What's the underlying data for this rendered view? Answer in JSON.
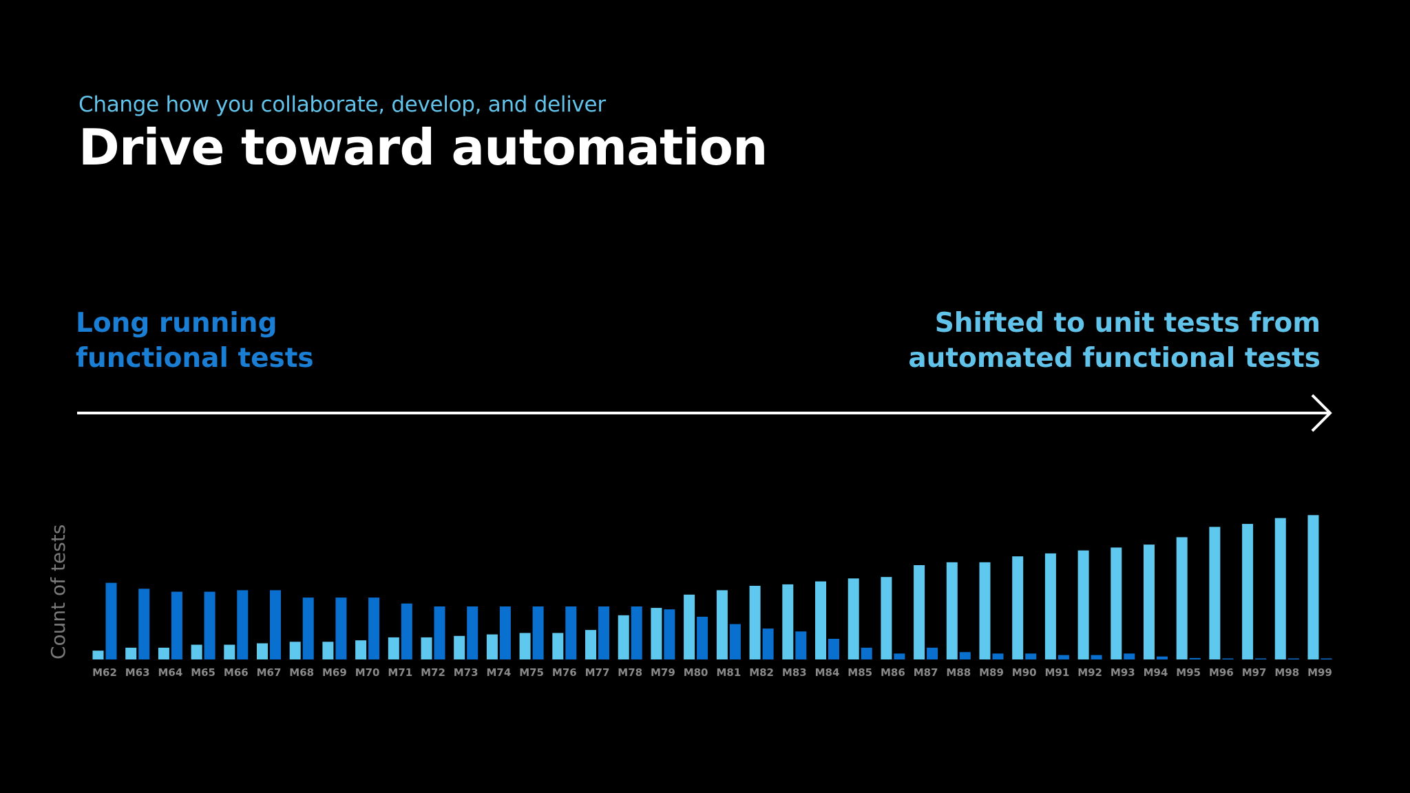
{
  "slide": {
    "kicker": "Change how you collaborate, develop, and deliver",
    "title": "Drive toward automation",
    "left_note": [
      "Long running",
      "functional tests"
    ],
    "right_note": [
      "Shifted to unit tests from",
      "automated functional tests"
    ]
  },
  "colors": {
    "background": "#000000",
    "light_series": "#5fc8ee",
    "dark_series": "#0a70d0",
    "kicker": "#62c3ea",
    "left_note": "#1a7fd4",
    "right_note": "#62c3ea",
    "axis_text": "#8a8a8a"
  },
  "chart_data": {
    "type": "bar",
    "ylabel": "Count of tests",
    "xlabel": "",
    "legend": "none",
    "grid": false,
    "categories": [
      "M62",
      "M63",
      "M64",
      "M65",
      "M66",
      "M67",
      "M68",
      "M69",
      "M70",
      "M71",
      "M72",
      "M73",
      "M74",
      "M75",
      "M76",
      "M77",
      "M78",
      "M79",
      "M80",
      "M81",
      "M82",
      "M83",
      "M84",
      "M85",
      "M86",
      "M87",
      "M88",
      "M89",
      "M90",
      "M91",
      "M92",
      "M93",
      "M94",
      "M95",
      "M96",
      "M97",
      "M98",
      "M99"
    ],
    "series": [
      {
        "values": [
          6,
          8,
          8,
          10,
          10,
          11,
          12,
          12,
          13,
          15,
          15,
          16,
          17,
          18,
          18,
          20,
          30,
          35,
          44,
          47,
          50,
          51,
          53,
          55,
          56,
          64,
          66,
          66,
          70,
          72,
          74,
          76,
          78,
          83,
          90,
          92,
          96,
          98
        ]
      },
      {
        "values": [
          52,
          48,
          46,
          46,
          47,
          47,
          42,
          42,
          42,
          38,
          36,
          36,
          36,
          36,
          36,
          36,
          36,
          34,
          29,
          24,
          21,
          19,
          14,
          8,
          4,
          8,
          5,
          4,
          4,
          3,
          3,
          4,
          2,
          1,
          0.5,
          0.5,
          0.5,
          0.5
        ]
      }
    ],
    "ylim": [
      0,
      100
    ]
  }
}
